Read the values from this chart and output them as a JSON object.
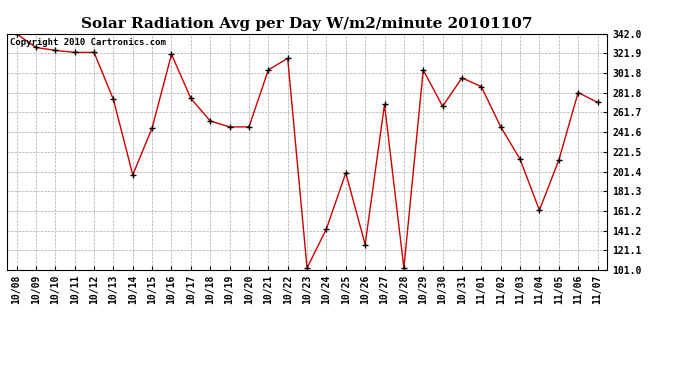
{
  "title": "Solar Radiation Avg per Day W/m2/minute 20101107",
  "copyright": "Copyright 2010 Cartronics.com",
  "dates": [
    "10/08",
    "10/09",
    "10/10",
    "10/11",
    "10/12",
    "10/13",
    "10/14",
    "10/15",
    "10/16",
    "10/17",
    "10/18",
    "10/19",
    "10/20",
    "10/21",
    "10/22",
    "10/23",
    "10/24",
    "10/25",
    "10/26",
    "10/27",
    "10/28",
    "10/29",
    "10/30",
    "10/31",
    "11/01",
    "11/02",
    "11/03",
    "11/04",
    "11/05",
    "11/06",
    "11/07"
  ],
  "values": [
    342.0,
    328.0,
    325.0,
    323.0,
    323.0,
    275.0,
    198.0,
    246.0,
    321.0,
    276.0,
    253.0,
    247.0,
    247.0,
    305.0,
    317.0,
    103.0,
    143.0,
    200.0,
    127.0,
    270.0,
    103.0,
    305.0,
    268.0,
    297.0,
    288.0,
    247.0,
    214.0,
    162.0,
    213.0,
    282.0,
    272.0
  ],
  "line_color": "#cc0000",
  "marker": "+",
  "marker_size": 5,
  "marker_color": "#000000",
  "background_color": "#ffffff",
  "grid_color": "#aaaaaa",
  "ylim": [
    101.0,
    342.0
  ],
  "yticks": [
    101.0,
    121.1,
    141.2,
    161.2,
    181.3,
    201.4,
    221.5,
    241.6,
    261.7,
    281.8,
    301.8,
    321.9,
    342.0
  ],
  "title_fontsize": 11,
  "tick_fontsize": 7,
  "copyright_fontsize": 6.5
}
